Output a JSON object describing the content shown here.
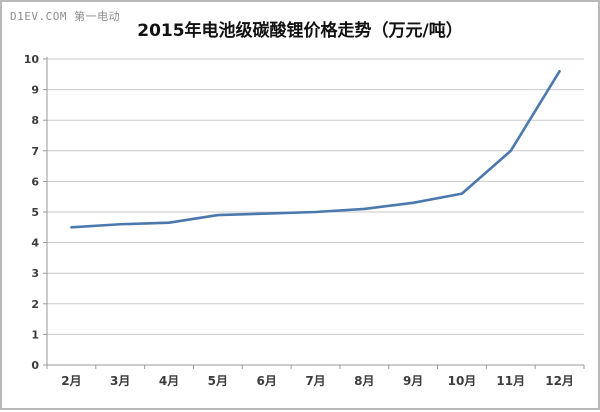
{
  "watermark": {
    "text": "D1EV.COM 第一电动"
  },
  "chart_data": {
    "type": "line",
    "title": "2015年电池级碳酸锂价格走势（万元/吨）",
    "categories": [
      "2月",
      "3月",
      "4月",
      "5月",
      "6月",
      "7月",
      "8月",
      "9月",
      "10月",
      "11月",
      "12月"
    ],
    "series": [
      {
        "name": "电池级碳酸锂价格",
        "values": [
          4.5,
          4.6,
          4.65,
          4.9,
          4.95,
          5.0,
          5.1,
          5.3,
          5.6,
          7.0,
          9.6
        ]
      }
    ],
    "xlabel": "",
    "ylabel": "",
    "ylim": [
      0,
      10
    ],
    "y_tick_step": 1,
    "grid": true,
    "legend_position": "none",
    "line_color": "#4b79ad",
    "gridline_color": "#c9c9c9",
    "axis_color": "#9a9a9a"
  }
}
